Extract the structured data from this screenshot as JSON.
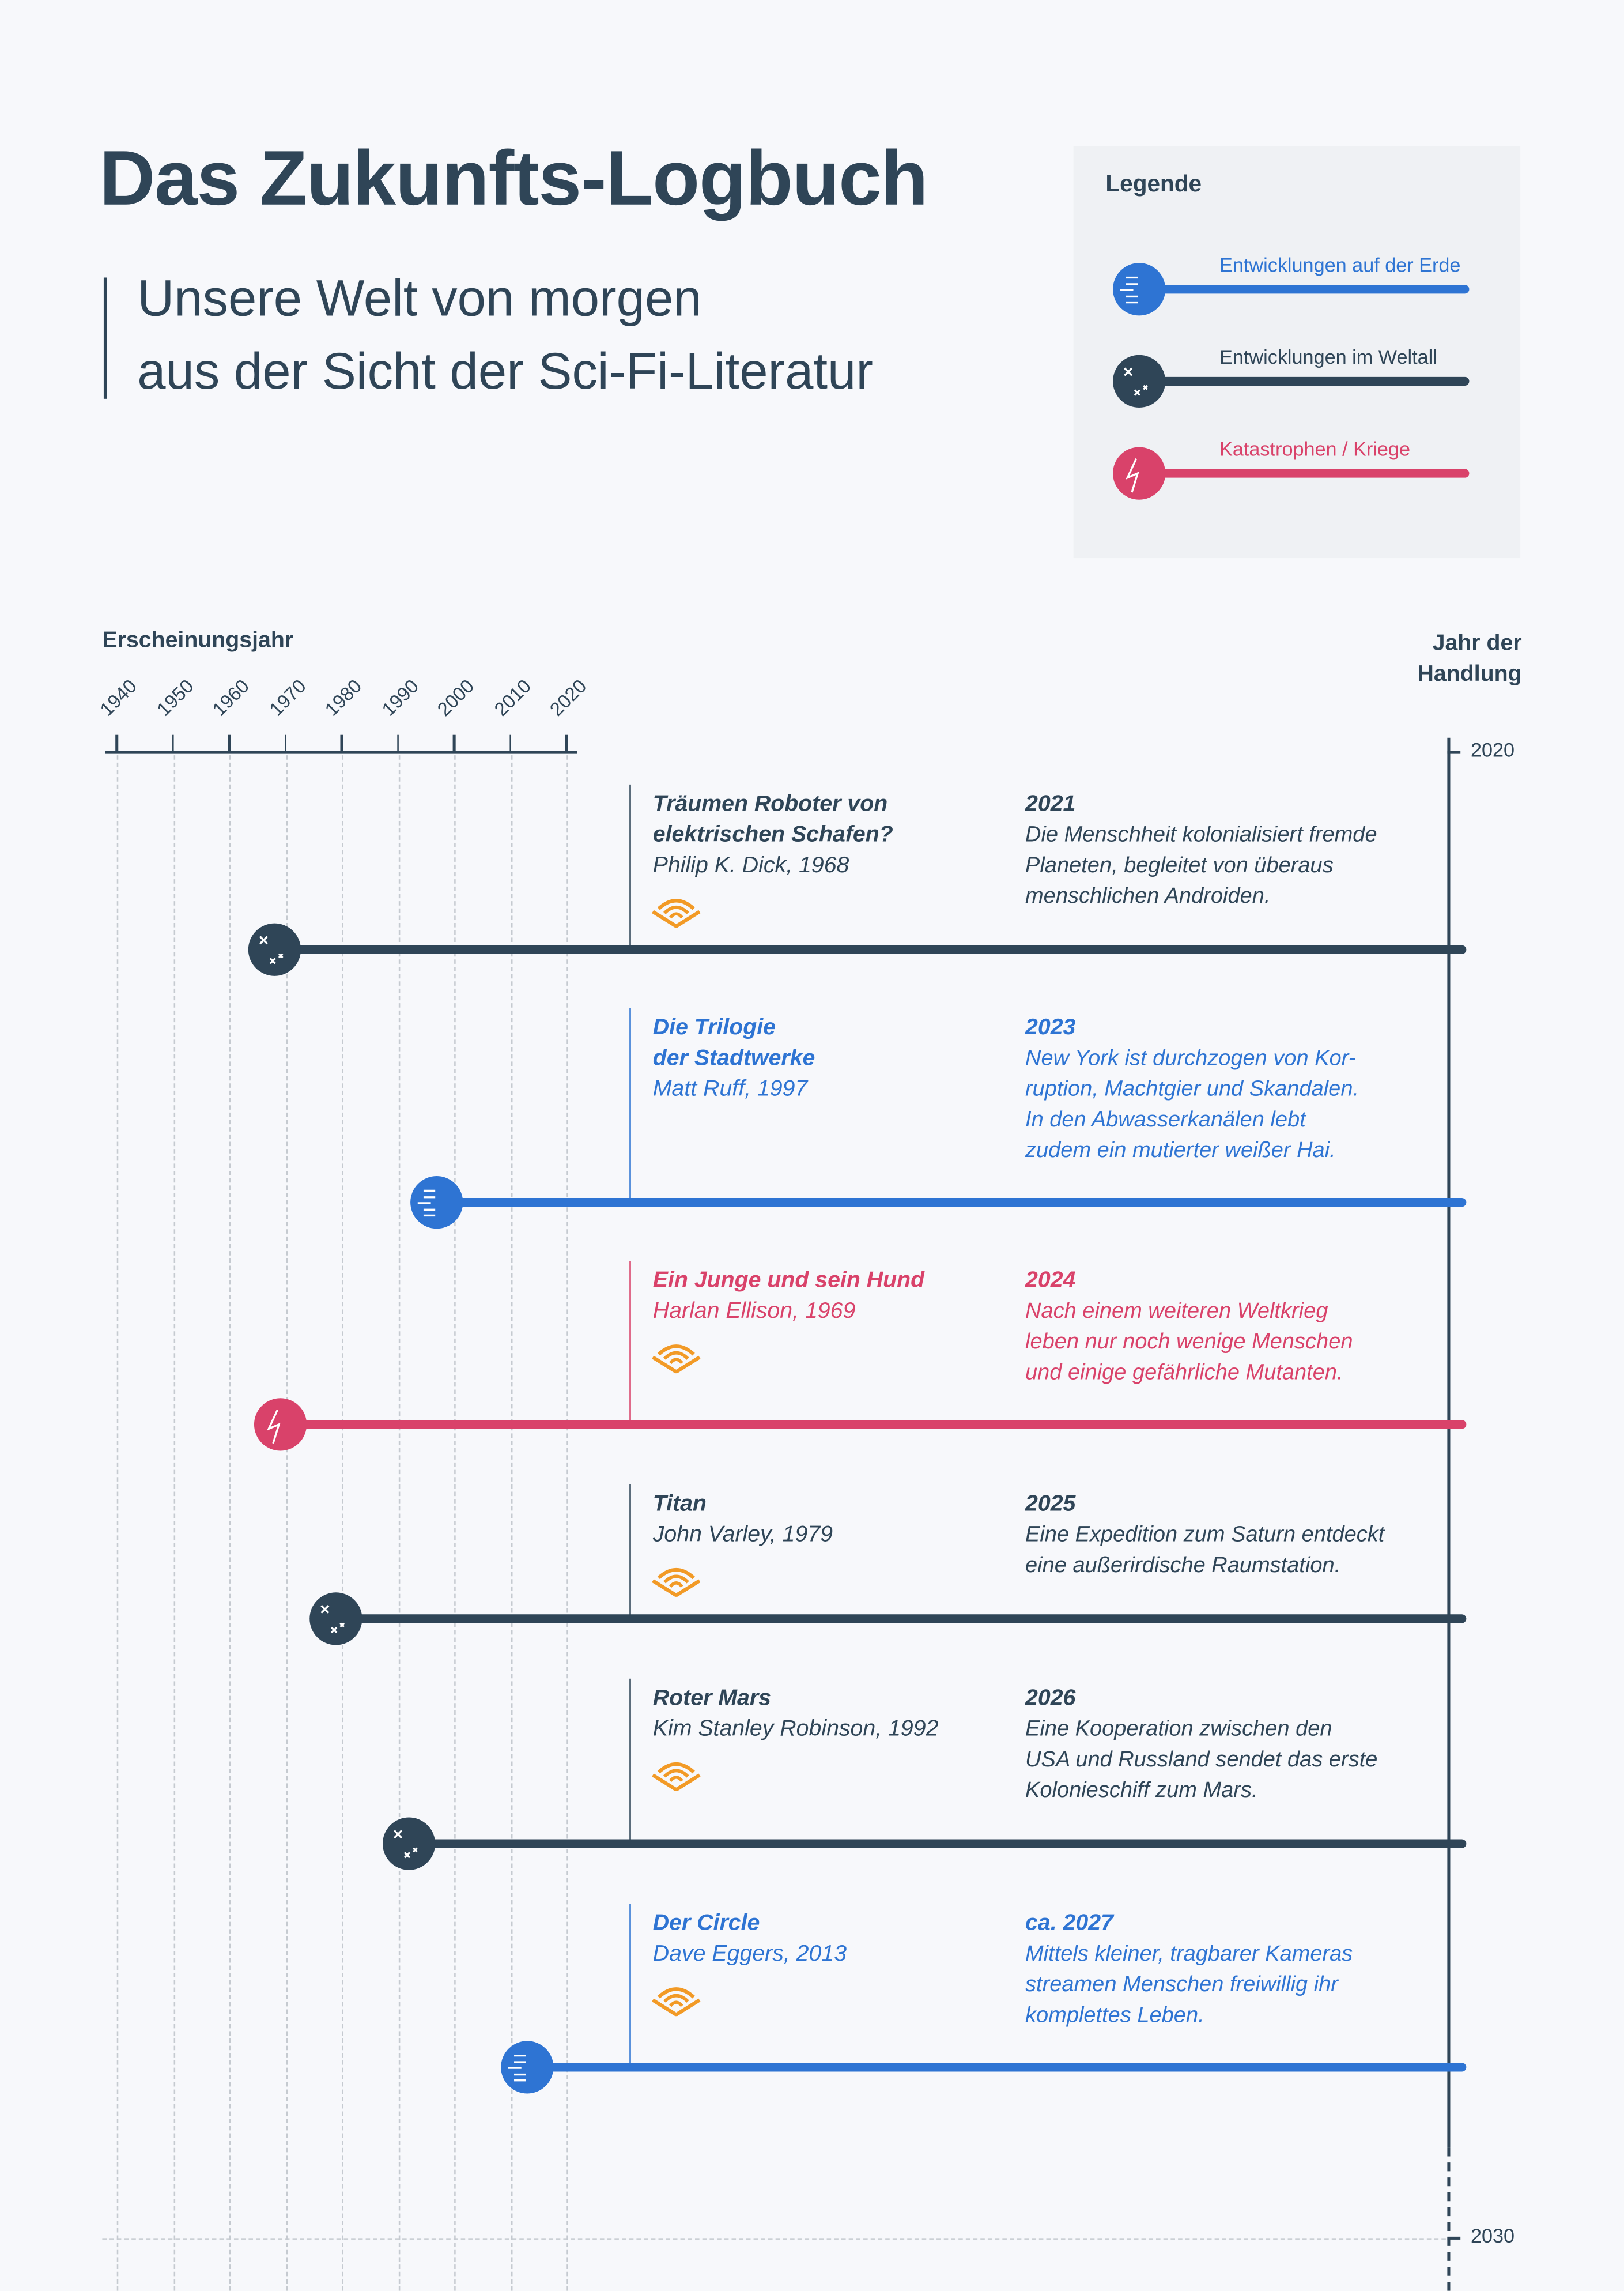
{
  "header": {
    "title": "Das Zukunfts-Logbuch",
    "subtitle_lines": [
      "Unsere Welt von morgen",
      "aus der Sicht der Sci-Fi-Literatur"
    ]
  },
  "colors": {
    "text": "#2f4557",
    "earth": "#2e74d3",
    "space": "#2f4557",
    "catastrophe": "#d9426a",
    "audible": "#f29a26",
    "legend_bg": "#eff1f4"
  },
  "legend": {
    "title": "Legende",
    "items": [
      {
        "label": "Entwicklungen auf der Erde",
        "category": "earth",
        "icon": "earth-lines-icon"
      },
      {
        "label": "Entwicklungen im Weltall",
        "category": "space",
        "icon": "stars-icon"
      },
      {
        "label": "Katastrophen / Kriege",
        "category": "catastrophe",
        "icon": "lightning-icon"
      }
    ]
  },
  "axes": {
    "left_label": "Erscheinungsjahr",
    "right_label_lines": [
      "Jahr der",
      "Handlung"
    ],
    "publication_ticks": [
      1940,
      1950,
      1960,
      1970,
      1980,
      1990,
      2000,
      2010,
      2020
    ],
    "story_ticks": [
      "2020",
      "2030"
    ],
    "publication_range": [
      1940,
      2020
    ],
    "story_range": [
      2020,
      2030
    ]
  },
  "entries": [
    {
      "title": "Träumen Roboter von\nelektrischen Schafen?",
      "author": "Philip K. Dick, 1968",
      "published": 1968,
      "story_year": "2021",
      "description": "Die Menschheit kolonialisiert fremde\nPlaneten, begleitet von überaus\nmenschlichen Androiden.",
      "category": "space",
      "audiobook": true
    },
    {
      "title": "Die Trilogie\nder Stadtwerke",
      "author": "Matt Ruff, 1997",
      "published": 1997,
      "story_year": "2023",
      "description": "New York ist durchzogen von Kor-\nruption, Machtgier und Skandalen.\nIn den Abwasserkanälen lebt\nzudem ein mutierter weißer Hai.",
      "category": "earth",
      "audiobook": false
    },
    {
      "title": "Ein Junge und sein Hund",
      "author": "Harlan Ellison, 1969",
      "published": 1969,
      "story_year": "2024",
      "description": "Nach einem weiteren Weltkrieg\nleben nur noch wenige Menschen\nund einige gefährliche Mutanten.",
      "category": "catastrophe",
      "audiobook": true
    },
    {
      "title": "Titan",
      "author": "John Varley, 1979",
      "published": 1979,
      "story_year": "2025",
      "description": "Eine Expedition zum Saturn entdeckt\neine außerirdische Raumstation.",
      "category": "space",
      "audiobook": true
    },
    {
      "title": "Roter Mars",
      "author": "Kim Stanley Robinson, 1992",
      "published": 1992,
      "story_year": "2026",
      "description": "Eine Kooperation zwischen den\nUSA und Russland sendet das erste\nKolonieschiff zum Mars.",
      "category": "space",
      "audiobook": true
    },
    {
      "title": "Der Circle",
      "author": "Dave Eggers, 2013",
      "published": 2013,
      "story_year": "ca. 2027",
      "description": "Mittels kleiner, tragbarer Kameras\nstreamen Menschen freiwillig ihr\nkomplettes Leben.",
      "category": "earth",
      "audiobook": true
    }
  ]
}
